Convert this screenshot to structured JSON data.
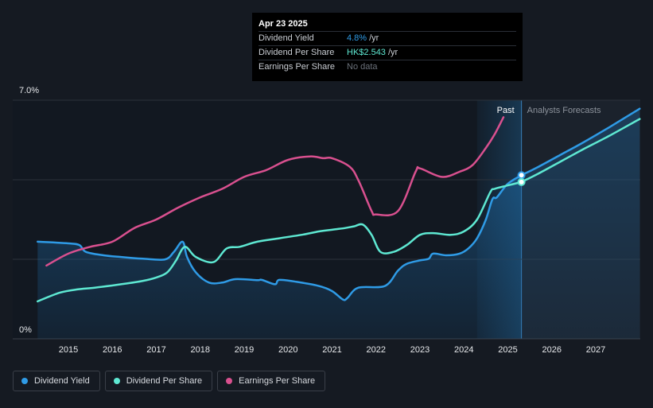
{
  "tooltip": {
    "date": "Apr 23 2025",
    "rows": [
      {
        "label": "Dividend Yield",
        "value": "4.8%",
        "unit": "/yr"
      },
      {
        "label": "Dividend Per Share",
        "value": "HK$2.543",
        "unit": "/yr"
      },
      {
        "label": "Earnings Per Share",
        "value": "No data"
      }
    ]
  },
  "legend": [
    {
      "label": "Dividend Yield",
      "color": "#2f9be6"
    },
    {
      "label": "Dividend Per Share",
      "color": "#5ee8d2"
    },
    {
      "label": "Earnings Per Share",
      "color": "#d9508f"
    }
  ],
  "chart_data": {
    "type": "line",
    "ylim": [
      0,
      7.0
    ],
    "xlim": [
      2014.3,
      2028.0
    ],
    "y_tick_labels": [
      "7.0%",
      "0%"
    ],
    "x_tick_labels": [
      "2015",
      "2016",
      "2017",
      "2018",
      "2019",
      "2020",
      "2021",
      "2022",
      "2023",
      "2024",
      "2025",
      "2026",
      "2027"
    ],
    "past_label": "Past",
    "forecast_label": "Analysts Forecasts",
    "forecast_start": 2025.31,
    "past_band_start": 2024.3,
    "highlight_x": 2025.31,
    "grid": true,
    "series": [
      {
        "name": "Dividend Yield",
        "color": "#2f9be6",
        "fill": true,
        "points": [
          [
            2014.3,
            2.85
          ],
          [
            2015.0,
            2.8
          ],
          [
            2015.25,
            2.75
          ],
          [
            2015.4,
            2.55
          ],
          [
            2015.8,
            2.45
          ],
          [
            2016.2,
            2.4
          ],
          [
            2016.7,
            2.35
          ],
          [
            2017.2,
            2.33
          ],
          [
            2017.4,
            2.55
          ],
          [
            2017.6,
            2.85
          ],
          [
            2017.7,
            2.4
          ],
          [
            2017.9,
            1.95
          ],
          [
            2018.2,
            1.65
          ],
          [
            2018.5,
            1.65
          ],
          [
            2018.8,
            1.75
          ],
          [
            2019.3,
            1.72
          ],
          [
            2019.4,
            1.73
          ],
          [
            2019.7,
            1.6
          ],
          [
            2019.8,
            1.73
          ],
          [
            2020.2,
            1.67
          ],
          [
            2020.7,
            1.55
          ],
          [
            2021.0,
            1.4
          ],
          [
            2021.25,
            1.15
          ],
          [
            2021.35,
            1.2
          ],
          [
            2021.6,
            1.5
          ],
          [
            2022.2,
            1.55
          ],
          [
            2022.5,
            2.0
          ],
          [
            2022.7,
            2.2
          ],
          [
            2023.0,
            2.3
          ],
          [
            2023.2,
            2.35
          ],
          [
            2023.3,
            2.5
          ],
          [
            2023.6,
            2.45
          ],
          [
            2023.9,
            2.5
          ],
          [
            2024.1,
            2.65
          ],
          [
            2024.3,
            2.95
          ],
          [
            2024.5,
            3.5
          ],
          [
            2024.65,
            4.1
          ],
          [
            2024.75,
            4.15
          ],
          [
            2025.0,
            4.55
          ],
          [
            2025.31,
            4.8
          ]
        ]
      },
      {
        "name": "Dividend Yield forecast",
        "color": "#2f9be6",
        "forecast": true,
        "points": [
          [
            2025.31,
            4.8
          ],
          [
            2025.7,
            5.05
          ],
          [
            2026.2,
            5.4
          ],
          [
            2026.7,
            5.75
          ],
          [
            2027.3,
            6.2
          ],
          [
            2028.0,
            6.75
          ]
        ]
      },
      {
        "name": "Dividend Per Share",
        "color": "#5ee8d2",
        "points": [
          [
            2014.3,
            1.1
          ],
          [
            2014.8,
            1.35
          ],
          [
            2015.2,
            1.45
          ],
          [
            2015.6,
            1.5
          ],
          [
            2016.2,
            1.6
          ],
          [
            2016.7,
            1.7
          ],
          [
            2017.0,
            1.8
          ],
          [
            2017.25,
            1.95
          ],
          [
            2017.45,
            2.3
          ],
          [
            2017.65,
            2.7
          ],
          [
            2017.9,
            2.4
          ],
          [
            2018.3,
            2.25
          ],
          [
            2018.6,
            2.65
          ],
          [
            2018.9,
            2.7
          ],
          [
            2019.3,
            2.85
          ],
          [
            2019.8,
            2.95
          ],
          [
            2020.3,
            3.05
          ],
          [
            2020.7,
            3.15
          ],
          [
            2021.0,
            3.2
          ],
          [
            2021.3,
            3.25
          ],
          [
            2021.5,
            3.3
          ],
          [
            2021.7,
            3.35
          ],
          [
            2021.9,
            3.05
          ],
          [
            2022.1,
            2.55
          ],
          [
            2022.4,
            2.55
          ],
          [
            2022.7,
            2.75
          ],
          [
            2023.0,
            3.05
          ],
          [
            2023.3,
            3.1
          ],
          [
            2023.7,
            3.05
          ],
          [
            2024.0,
            3.15
          ],
          [
            2024.3,
            3.5
          ],
          [
            2024.6,
            4.3
          ],
          [
            2024.7,
            4.4
          ],
          [
            2025.0,
            4.5
          ],
          [
            2025.31,
            4.6
          ]
        ]
      },
      {
        "name": "Dividend Per Share forecast",
        "color": "#5ee8d2",
        "forecast": true,
        "points": [
          [
            2025.31,
            4.6
          ],
          [
            2025.7,
            4.85
          ],
          [
            2026.2,
            5.2
          ],
          [
            2026.7,
            5.55
          ],
          [
            2027.3,
            5.95
          ],
          [
            2028.0,
            6.45
          ]
        ]
      },
      {
        "name": "Earnings Per Share",
        "color": "#d9508f",
        "points": [
          [
            2014.5,
            2.15
          ],
          [
            2015.0,
            2.5
          ],
          [
            2015.5,
            2.7
          ],
          [
            2016.0,
            2.85
          ],
          [
            2016.5,
            3.25
          ],
          [
            2017.0,
            3.5
          ],
          [
            2017.5,
            3.85
          ],
          [
            2018.0,
            4.15
          ],
          [
            2018.5,
            4.4
          ],
          [
            2019.0,
            4.75
          ],
          [
            2019.5,
            4.95
          ],
          [
            2020.0,
            5.25
          ],
          [
            2020.5,
            5.35
          ],
          [
            2020.8,
            5.3
          ],
          [
            2021.0,
            5.3
          ],
          [
            2021.4,
            5.05
          ],
          [
            2021.6,
            4.65
          ],
          [
            2021.9,
            3.75
          ],
          [
            2022.0,
            3.65
          ],
          [
            2022.5,
            3.75
          ],
          [
            2022.9,
            4.9
          ],
          [
            2023.0,
            5.0
          ],
          [
            2023.5,
            4.75
          ],
          [
            2023.9,
            4.9
          ],
          [
            2024.2,
            5.1
          ],
          [
            2024.5,
            5.6
          ],
          [
            2024.7,
            6.0
          ],
          [
            2024.9,
            6.5
          ]
        ]
      }
    ]
  }
}
